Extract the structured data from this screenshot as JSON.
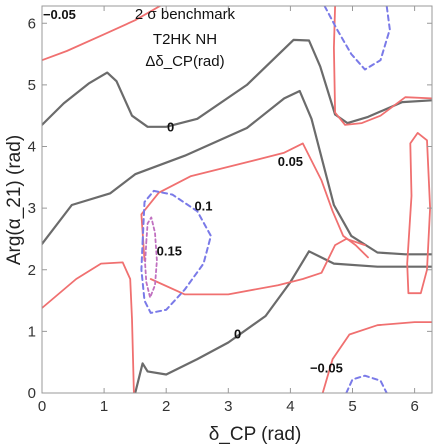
{
  "chart_data": {
    "type": "contour",
    "annotations": [
      "2 σ benchmark",
      "T2HK NH",
      "Δδ_CP(rad)"
    ],
    "xlabel": "δ_CP  (rad)",
    "ylabel": "Arg(α_21)  (rad)",
    "xlim": [
      0,
      6.28
    ],
    "ylim": [
      0,
      6.28
    ],
    "xticks": [
      "0",
      "1",
      "2",
      "3",
      "4",
      "5",
      "6"
    ],
    "yticks": [
      "0",
      "1",
      "2",
      "3",
      "4",
      "5",
      "6"
    ],
    "grid": false,
    "colors": {
      "level_0": "#6b6b6b",
      "level_pm005": "#f07070",
      "level_01": "#7a7ae8",
      "level_015": "#c070c0"
    },
    "contour_labels": [
      {
        "text": "−0.05",
        "x": 0.28,
        "y": 6.13
      },
      {
        "text": "0",
        "x": 2.07,
        "y": 4.31
      },
      {
        "text": "0.05",
        "x": 4.0,
        "y": 3.75
      },
      {
        "text": "0.1",
        "x": 2.6,
        "y": 3.03
      },
      {
        "text": "0.15",
        "x": 2.05,
        "y": 2.3
      },
      {
        "text": "0",
        "x": 3.15,
        "y": 0.95
      },
      {
        "text": "−0.05",
        "x": 4.58,
        "y": 0.4
      }
    ],
    "series": [
      {
        "level": 0,
        "style": "gray",
        "points": [
          [
            0,
            2.42
          ],
          [
            0.48,
            3.05
          ],
          [
            1.1,
            3.24
          ],
          [
            1.5,
            3.55
          ],
          [
            2.3,
            3.85
          ],
          [
            3.3,
            4.3
          ],
          [
            3.9,
            4.78
          ],
          [
            4.15,
            4.9
          ],
          [
            4.34,
            4.45
          ],
          [
            4.7,
            3.05
          ],
          [
            4.98,
            2.55
          ],
          [
            5.4,
            2.28
          ],
          [
            5.85,
            2.25
          ],
          [
            6.28,
            2.25
          ]
        ]
      },
      {
        "level": 0,
        "style": "gray",
        "points": [
          [
            0,
            4.35
          ],
          [
            0.35,
            4.7
          ],
          [
            0.75,
            5.02
          ],
          [
            1.05,
            5.2
          ],
          [
            1.2,
            5.06
          ],
          [
            1.45,
            4.5
          ],
          [
            1.7,
            4.32
          ],
          [
            2.0,
            4.32
          ],
          [
            2.5,
            4.45
          ],
          [
            3.3,
            5.0
          ],
          [
            4.05,
            5.73
          ],
          [
            4.3,
            5.72
          ],
          [
            4.48,
            5.3
          ],
          [
            4.72,
            4.52
          ],
          [
            4.92,
            4.38
          ],
          [
            5.25,
            4.48
          ],
          [
            5.8,
            4.72
          ],
          [
            6.28,
            4.75
          ]
        ]
      },
      {
        "level": 0,
        "style": "gray",
        "points": [
          [
            1.5,
            0
          ],
          [
            1.62,
            0.48
          ],
          [
            1.7,
            0.35
          ],
          [
            2.0,
            0.3
          ],
          [
            2.5,
            0.55
          ],
          [
            3.0,
            0.82
          ],
          [
            3.6,
            1.25
          ],
          [
            4.0,
            1.8
          ],
          [
            4.3,
            2.3
          ],
          [
            4.7,
            2.1
          ],
          [
            5.4,
            2.05
          ],
          [
            6.0,
            2.05
          ],
          [
            6.28,
            2.05
          ]
        ]
      },
      {
        "level": -0.05,
        "style": "red",
        "points": [
          [
            0,
            5.4
          ],
          [
            0.4,
            5.55
          ],
          [
            1.0,
            5.82
          ],
          [
            1.5,
            6.05
          ],
          [
            1.9,
            6.28
          ]
        ]
      },
      {
        "level": 0.05,
        "style": "red",
        "points": [
          [
            0,
            1.38
          ],
          [
            0.55,
            1.85
          ],
          [
            0.95,
            2.1
          ],
          [
            1.3,
            2.12
          ],
          [
            1.42,
            1.85
          ],
          [
            1.45,
            1.2
          ],
          [
            1.48,
            0
          ]
        ]
      },
      {
        "level": 0.05,
        "style": "red",
        "points": [
          [
            1.65,
            2.15
          ],
          [
            1.6,
            2.9
          ],
          [
            1.88,
            3.25
          ],
          [
            2.4,
            3.52
          ],
          [
            3.2,
            3.72
          ],
          [
            3.9,
            3.9
          ],
          [
            4.2,
            4.05
          ],
          [
            4.5,
            3.45
          ],
          [
            4.68,
            2.95
          ],
          [
            4.85,
            2.55
          ],
          [
            5.05,
            2.4
          ],
          [
            5.25,
            2.2
          ]
        ]
      },
      {
        "level": 0.05,
        "style": "red",
        "points": [
          [
            1.75,
            1.85
          ],
          [
            2.3,
            1.6
          ],
          [
            3.0,
            1.6
          ],
          [
            3.8,
            1.75
          ],
          [
            4.2,
            1.85
          ],
          [
            4.5,
            1.95
          ],
          [
            4.72,
            2.4
          ],
          [
            4.9,
            2.5
          ],
          [
            5.2,
            2.4
          ]
        ]
      },
      {
        "level": 0.05,
        "style": "red",
        "points": [
          [
            4.72,
            6.28
          ],
          [
            4.7,
            5.6
          ],
          [
            4.72,
            4.55
          ],
          [
            4.88,
            4.35
          ],
          [
            5.15,
            4.38
          ],
          [
            5.45,
            4.5
          ],
          [
            5.85,
            4.8
          ],
          [
            6.28,
            4.78
          ]
        ]
      },
      {
        "level": -0.05,
        "style": "red",
        "points": [
          [
            4.52,
            0
          ],
          [
            4.68,
            0.55
          ],
          [
            4.95,
            0.95
          ],
          [
            5.4,
            1.1
          ],
          [
            6.0,
            1.15
          ],
          [
            6.28,
            1.15
          ]
        ]
      },
      {
        "level": -0.05,
        "style": "red",
        "points": [
          [
            5.9,
            1.62
          ],
          [
            5.88,
            2.1
          ],
          [
            5.95,
            3.2
          ],
          [
            5.93,
            4.05
          ],
          [
            6.05,
            4.22
          ],
          [
            6.2,
            4.1
          ],
          [
            6.25,
            3.0
          ],
          [
            6.2,
            2.0
          ],
          [
            6.1,
            1.62
          ],
          [
            5.9,
            1.62
          ]
        ]
      },
      {
        "level": 0.1,
        "style": "blue",
        "points": [
          [
            1.62,
            2.45
          ],
          [
            1.65,
            3.1
          ],
          [
            1.8,
            3.28
          ],
          [
            2.1,
            3.22
          ],
          [
            2.5,
            2.95
          ],
          [
            2.72,
            2.55
          ],
          [
            2.6,
            2.1
          ],
          [
            2.3,
            1.68
          ],
          [
            2.0,
            1.35
          ],
          [
            1.75,
            1.3
          ],
          [
            1.65,
            1.5
          ],
          [
            1.6,
            2.0
          ],
          [
            1.62,
            2.45
          ]
        ]
      },
      {
        "level": 0.15,
        "style": "purple",
        "points": [
          [
            1.68,
            2.45
          ],
          [
            1.7,
            2.75
          ],
          [
            1.76,
            2.85
          ],
          [
            1.82,
            2.6
          ],
          [
            1.85,
            2.15
          ],
          [
            1.82,
            1.75
          ],
          [
            1.74,
            1.55
          ],
          [
            1.68,
            1.8
          ],
          [
            1.66,
            2.1
          ],
          [
            1.68,
            2.45
          ]
        ]
      },
      {
        "level": 0.1,
        "style": "blue",
        "points": [
          [
            4.55,
            6.28
          ],
          [
            4.75,
            5.9
          ],
          [
            4.98,
            5.5
          ],
          [
            5.2,
            5.25
          ],
          [
            5.45,
            5.4
          ],
          [
            5.6,
            5.9
          ],
          [
            5.55,
            6.28
          ]
        ]
      },
      {
        "level": -0.1,
        "style": "blue",
        "points": [
          [
            4.9,
            0
          ],
          [
            5.0,
            0.22
          ],
          [
            5.2,
            0.28
          ],
          [
            5.45,
            0.2
          ],
          [
            5.55,
            0
          ]
        ]
      }
    ]
  }
}
